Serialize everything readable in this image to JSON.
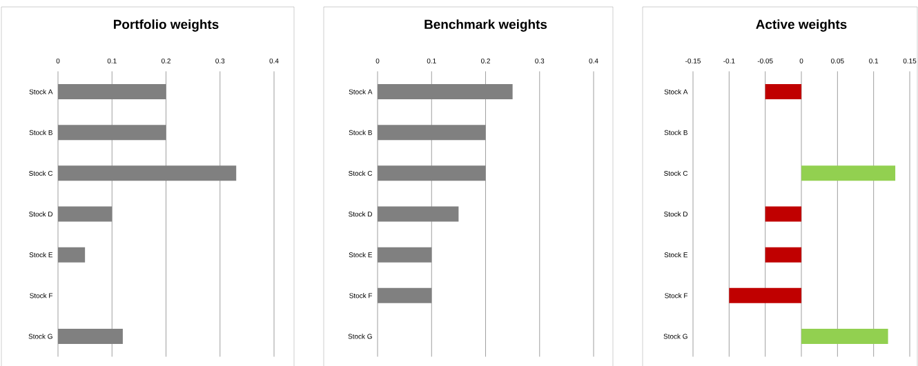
{
  "chart_data": [
    {
      "type": "bar",
      "orientation": "horizontal",
      "title": "Portfolio weights",
      "categories": [
        "Stock A",
        "Stock B",
        "Stock C",
        "Stock D",
        "Stock E",
        "Stock F",
        "Stock G"
      ],
      "values": [
        0.2,
        0.2,
        0.33,
        0.1,
        0.05,
        0,
        0.12
      ],
      "color": "#808080",
      "xlim": [
        0,
        0.4
      ],
      "xticks": [
        0,
        0.1,
        0.2,
        0.3,
        0.4
      ],
      "grid": "x"
    },
    {
      "type": "bar",
      "orientation": "horizontal",
      "title": "Benchmark weights",
      "categories": [
        "Stock A",
        "Stock B",
        "Stock C",
        "Stock D",
        "Stock E",
        "Stock F",
        "Stock G"
      ],
      "values": [
        0.25,
        0.2,
        0.2,
        0.15,
        0.1,
        0.1,
        0
      ],
      "color": "#808080",
      "xlim": [
        0,
        0.4
      ],
      "xticks": [
        0,
        0.1,
        0.2,
        0.3,
        0.4
      ],
      "grid": "x"
    },
    {
      "type": "bar",
      "orientation": "horizontal",
      "title": "Active weights",
      "categories": [
        "Stock A",
        "Stock B",
        "Stock C",
        "Stock D",
        "Stock E",
        "Stock F",
        "Stock G"
      ],
      "values": [
        -0.05,
        0,
        0.13,
        -0.05,
        -0.05,
        -0.1,
        0.12
      ],
      "colors": [
        "#c00000",
        "#c00000",
        "#92d050",
        "#c00000",
        "#c00000",
        "#c00000",
        "#92d050"
      ],
      "xlim": [
        -0.15,
        0.15
      ],
      "xticks": [
        -0.15,
        -0.1,
        -0.05,
        0,
        0.05,
        0.1,
        0.15
      ],
      "grid": "x"
    }
  ]
}
